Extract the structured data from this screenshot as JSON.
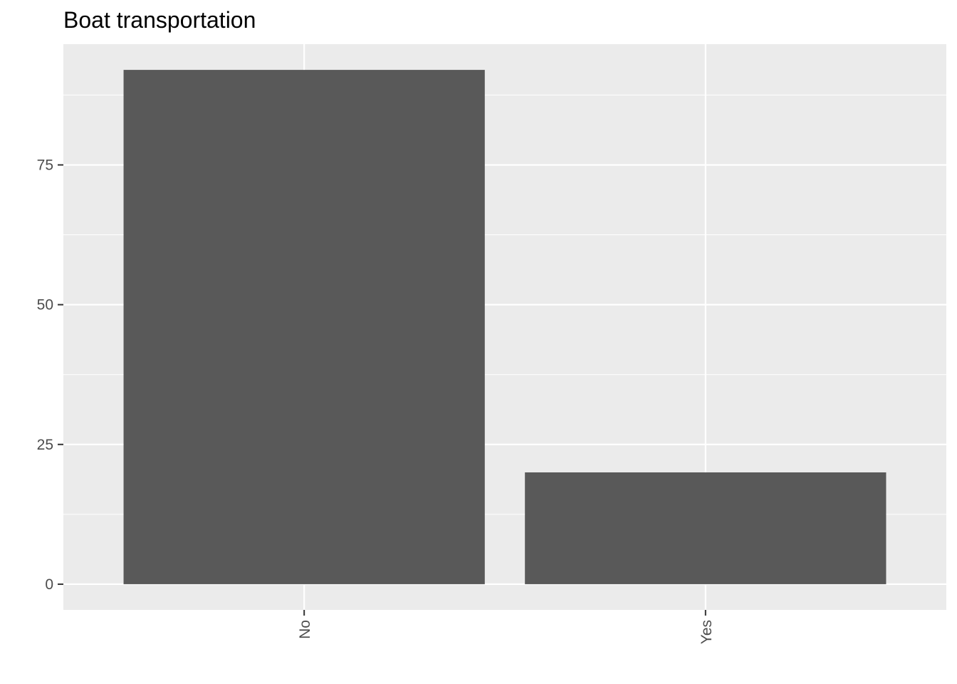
{
  "chart_data": {
    "type": "bar",
    "title": "Boat transportation",
    "xlabel": "",
    "ylabel": "",
    "categories": [
      "No",
      "Yes"
    ],
    "values": [
      92,
      20
    ],
    "ylim": [
      -4.6,
      96.6
    ],
    "yticks": [
      0,
      25,
      50,
      75
    ],
    "grid": true,
    "bar_color": "#595959",
    "panel_background": "#ebebeb",
    "gridline_color": "#ffffff"
  }
}
